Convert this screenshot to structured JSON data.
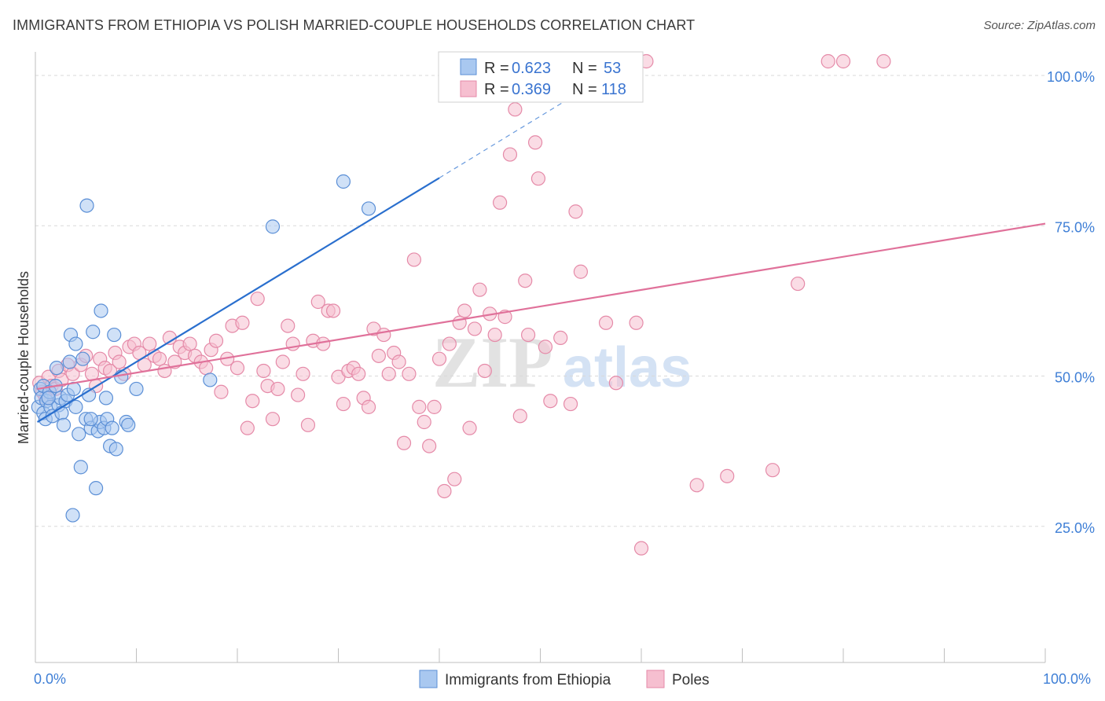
{
  "header": {
    "title": "IMMIGRANTS FROM ETHIOPIA VS POLISH MARRIED-COUPLE HOUSEHOLDS CORRELATION CHART",
    "source": "Source: ZipAtlas.com"
  },
  "watermark": {
    "zip": "ZIP",
    "atlas": "atlas"
  },
  "colors": {
    "blue_fill": "#a9c8f0",
    "blue_stroke": "#5b8fd6",
    "blue_line": "#2a6fce",
    "pink_fill": "#f6bfd0",
    "pink_stroke": "#e58aa8",
    "pink_line": "#e0719a",
    "grid": "#d9d9d9",
    "tick_text": "#3f7fd6"
  },
  "legend": {
    "rows": [
      {
        "r_label": "R = ",
        "r_value": "0.623",
        "n_label": "N = ",
        "n_value": "53"
      },
      {
        "r_label": "R = ",
        "r_value": "0.369",
        "n_label": "N = ",
        "n_value": "118"
      }
    ]
  },
  "chart_data": {
    "type": "scatter",
    "xlabel": "",
    "ylabel": "Married-couple Households",
    "xlim": [
      0,
      100
    ],
    "ylim": [
      0,
      100
    ],
    "x_tick_labels": [
      "0.0%",
      "100.0%"
    ],
    "y_ticks": [
      25,
      50,
      75,
      100
    ],
    "y_tick_labels": [
      "25.0%",
      "50.0%",
      "75.0%",
      "100.0%"
    ],
    "series": [
      {
        "name": "Immigrants from Ethiopia",
        "r": 0.623,
        "n": 53,
        "trend": {
          "x0": 0.2,
          "y0": 40.0,
          "x1": 40.0,
          "y1": 80.6,
          "dash_to_x": 55.0,
          "dash_to_y": 96.0
        },
        "points": [
          [
            0.3,
            42.5
          ],
          [
            0.5,
            45.5
          ],
          [
            0.6,
            44.0
          ],
          [
            0.8,
            46.0
          ],
          [
            0.8,
            41.5
          ],
          [
            1.0,
            40.5
          ],
          [
            1.1,
            43.5
          ],
          [
            1.4,
            45.0
          ],
          [
            1.5,
            42.5
          ],
          [
            1.7,
            41.0
          ],
          [
            2.0,
            46.0
          ],
          [
            2.1,
            49.0
          ],
          [
            2.3,
            42.8
          ],
          [
            2.5,
            44.0
          ],
          [
            2.6,
            41.5
          ],
          [
            2.8,
            39.5
          ],
          [
            3.0,
            43.5
          ],
          [
            3.2,
            44.5
          ],
          [
            3.4,
            50.0
          ],
          [
            3.5,
            54.5
          ],
          [
            3.8,
            45.5
          ],
          [
            4.0,
            53.0
          ],
          [
            4.0,
            42.5
          ],
          [
            4.3,
            38.0
          ],
          [
            4.5,
            32.5
          ],
          [
            4.7,
            50.5
          ],
          [
            5.0,
            40.5
          ],
          [
            5.1,
            76.0
          ],
          [
            5.3,
            44.5
          ],
          [
            5.5,
            39.0
          ],
          [
            5.7,
            55.0
          ],
          [
            6.0,
            29.0
          ],
          [
            6.2,
            38.5
          ],
          [
            6.4,
            40.0
          ],
          [
            6.5,
            58.5
          ],
          [
            6.8,
            39.0
          ],
          [
            7.0,
            44.0
          ],
          [
            7.1,
            40.5
          ],
          [
            7.4,
            36.0
          ],
          [
            7.6,
            39.0
          ],
          [
            7.8,
            54.5
          ],
          [
            8.0,
            35.5
          ],
          [
            8.5,
            47.5
          ],
          [
            9.0,
            40.0
          ],
          [
            9.2,
            39.5
          ],
          [
            10.0,
            45.5
          ],
          [
            5.5,
            40.5
          ],
          [
            3.7,
            24.5
          ],
          [
            17.3,
            47.0
          ],
          [
            23.5,
            72.5
          ],
          [
            30.5,
            80.0
          ],
          [
            33.0,
            75.5
          ],
          [
            1.3,
            44.0
          ]
        ]
      },
      {
        "name": "Poles",
        "r": 0.369,
        "n": 118,
        "trend": {
          "x0": 0.2,
          "y0": 45.5,
          "x1": 100,
          "y1": 73.0
        },
        "points": [
          [
            0.4,
            46.5
          ],
          [
            0.7,
            45.0
          ],
          [
            1.0,
            44.0
          ],
          [
            1.3,
            47.5
          ],
          [
            1.6,
            46.0
          ],
          [
            2.0,
            45.5
          ],
          [
            2.3,
            48.5
          ],
          [
            2.6,
            47.0
          ],
          [
            3.2,
            49.5
          ],
          [
            3.7,
            48.0
          ],
          [
            4.5,
            49.5
          ],
          [
            5.0,
            51.0
          ],
          [
            5.6,
            48.0
          ],
          [
            6.0,
            46.0
          ],
          [
            6.4,
            50.5
          ],
          [
            6.9,
            49.0
          ],
          [
            7.4,
            48.5
          ],
          [
            7.9,
            51.5
          ],
          [
            8.3,
            50.0
          ],
          [
            8.8,
            48.0
          ],
          [
            9.3,
            52.5
          ],
          [
            9.8,
            53.0
          ],
          [
            10.3,
            51.5
          ],
          [
            10.8,
            49.5
          ],
          [
            11.3,
            53.0
          ],
          [
            11.8,
            51.0
          ],
          [
            12.3,
            50.5
          ],
          [
            12.8,
            48.5
          ],
          [
            13.3,
            54.0
          ],
          [
            13.8,
            50.0
          ],
          [
            14.3,
            52.5
          ],
          [
            14.8,
            51.5
          ],
          [
            15.3,
            53.0
          ],
          [
            15.8,
            51.0
          ],
          [
            16.4,
            50.0
          ],
          [
            16.9,
            49.0
          ],
          [
            17.4,
            52.0
          ],
          [
            17.9,
            53.5
          ],
          [
            18.4,
            45.0
          ],
          [
            19.0,
            50.5
          ],
          [
            19.5,
            56.0
          ],
          [
            20.0,
            49.0
          ],
          [
            20.5,
            56.5
          ],
          [
            21.0,
            39.0
          ],
          [
            21.5,
            43.5
          ],
          [
            22.0,
            60.5
          ],
          [
            22.6,
            48.5
          ],
          [
            23.0,
            46.0
          ],
          [
            23.5,
            40.5
          ],
          [
            24.0,
            45.5
          ],
          [
            24.5,
            50.0
          ],
          [
            25.0,
            56.0
          ],
          [
            25.5,
            53.0
          ],
          [
            26.0,
            44.5
          ],
          [
            26.5,
            48.0
          ],
          [
            27.0,
            39.5
          ],
          [
            27.5,
            53.5
          ],
          [
            28.0,
            60.0
          ],
          [
            28.5,
            53.0
          ],
          [
            29.0,
            58.5
          ],
          [
            29.5,
            58.5
          ],
          [
            30.0,
            47.5
          ],
          [
            30.5,
            43.0
          ],
          [
            31.0,
            48.5
          ],
          [
            31.5,
            49.0
          ],
          [
            32.0,
            48.0
          ],
          [
            32.5,
            44.0
          ],
          [
            33.0,
            42.5
          ],
          [
            33.5,
            55.5
          ],
          [
            34.0,
            51.0
          ],
          [
            34.5,
            54.5
          ],
          [
            35.0,
            48.0
          ],
          [
            35.5,
            51.5
          ],
          [
            36.0,
            50.0
          ],
          [
            36.5,
            36.5
          ],
          [
            37.0,
            48.0
          ],
          [
            37.5,
            67.0
          ],
          [
            38.0,
            42.5
          ],
          [
            38.5,
            40.0
          ],
          [
            39.0,
            36.0
          ],
          [
            39.5,
            42.5
          ],
          [
            40.0,
            50.5
          ],
          [
            40.5,
            28.5
          ],
          [
            41.0,
            53.0
          ],
          [
            41.5,
            30.5
          ],
          [
            42.0,
            56.5
          ],
          [
            42.5,
            58.5
          ],
          [
            43.0,
            39.0
          ],
          [
            43.5,
            55.5
          ],
          [
            44.0,
            62.0
          ],
          [
            44.5,
            48.5
          ],
          [
            45.0,
            58.0
          ],
          [
            45.5,
            54.5
          ],
          [
            46.0,
            76.5
          ],
          [
            46.5,
            57.5
          ],
          [
            47.0,
            84.5
          ],
          [
            47.5,
            92.0
          ],
          [
            48.0,
            41.0
          ],
          [
            48.5,
            63.5
          ],
          [
            48.8,
            54.5
          ],
          [
            49.5,
            86.5
          ],
          [
            49.8,
            80.5
          ],
          [
            50.5,
            52.5
          ],
          [
            51.0,
            43.5
          ],
          [
            52.0,
            54.0
          ],
          [
            53.0,
            43.0
          ],
          [
            53.5,
            75.0
          ],
          [
            54.0,
            65.0
          ],
          [
            56.5,
            56.5
          ],
          [
            57.5,
            46.5
          ],
          [
            59.5,
            56.5
          ],
          [
            60.5,
            100.0
          ],
          [
            60.0,
            19.0
          ],
          [
            65.5,
            29.5
          ],
          [
            68.5,
            31.0
          ],
          [
            73.0,
            32.0
          ],
          [
            75.5,
            63.0
          ],
          [
            78.5,
            100.0
          ],
          [
            80.0,
            100.0
          ],
          [
            84.0,
            100.0
          ]
        ]
      }
    ]
  },
  "bottom_legend": [
    {
      "label": "Immigrants from Ethiopia"
    },
    {
      "label": "Poles"
    }
  ]
}
